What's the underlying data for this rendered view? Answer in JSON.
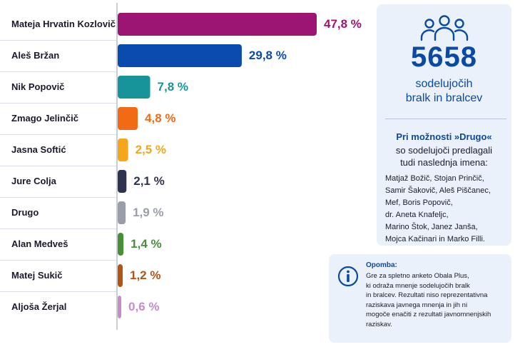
{
  "chart_data": {
    "type": "bar",
    "orientation": "horizontal",
    "categories": [
      "Mateja Hrvatin Kozlovič",
      "Aleš Bržan",
      "Nik Popovič",
      "Zmago Jelinčič",
      "Jasna Softić",
      "Jure Colja",
      "Drugo",
      "Alan Medveš",
      "Matej Sukič",
      "Aljoša Žerjal"
    ],
    "values": [
      47.8,
      29.8,
      7.8,
      4.8,
      2.5,
      2.1,
      1.9,
      1.4,
      1.2,
      0.6
    ],
    "value_labels": [
      "47,8 %",
      "29,8 %",
      "7,8 %",
      "4,8 %",
      "2,5 %",
      "2,1 %",
      "1,9 %",
      "1,4 %",
      "1,2 %",
      "0,6 %"
    ],
    "colors": [
      "#9c1573",
      "#0a4bb0",
      "#17949a",
      "#f26b14",
      "#f5a61b",
      "#2f3350",
      "#9a9ea8",
      "#4a8c3a",
      "#b05418",
      "#c58cc8"
    ],
    "xlim": [
      0,
      50
    ],
    "grid": false,
    "legend": "none"
  },
  "participants": {
    "icon": "people-group-icon",
    "count": "5658",
    "line1": "sodelujočih",
    "line2": "bralk in bralcev"
  },
  "drugo": {
    "heading": "Pri možnosti »Drugo«",
    "sub_line1": "so sodelujoči predlagali",
    "sub_line2": "tudi naslednja imena:",
    "names": [
      "Matjaž Božič, Stojan Prinčič,",
      "Samir Šakovič, Aleš Piščanec,",
      "Mef, Boris Popovič,",
      "dr. Aneta Knafeljc,",
      "Marino Štok, Janez Janša,",
      "Mojca Kačinari in Marko Filli."
    ]
  },
  "note": {
    "icon": "info-icon",
    "heading": "Opomba:",
    "lines": [
      "Gre za spletno anketo Obala Plus,",
      "ki odraža mnenje sodelujočih bralk",
      "in bralcev. Rezultati niso reprezentativna",
      "raziskava javnega mnenja in jih ni",
      "mogoče enačiti z rezultati javnomnenjskih",
      "raziskav."
    ]
  },
  "colors": {
    "accent": "#0a4aa3",
    "panel_bg": "#eaf1fb"
  }
}
